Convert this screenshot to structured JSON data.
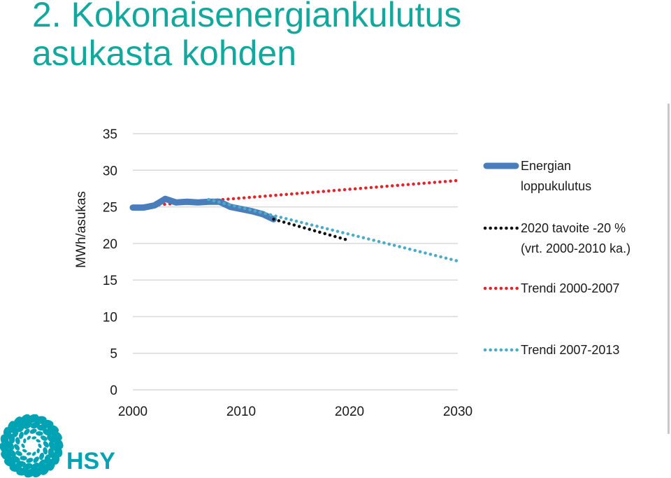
{
  "title": {
    "line1": "2. Kokonaisenergiankulutus",
    "line2": "asukasta kohden",
    "color": "#12a89d"
  },
  "logo": {
    "text": "HSY",
    "color": "#00a3b4",
    "icon": "hsy-rosette-logo-icon"
  },
  "chart_data": {
    "type": "line",
    "title": "",
    "xlabel": "",
    "ylabel": "MWh/asukas",
    "xlim": [
      2000,
      2030
    ],
    "ylim": [
      0,
      35
    ],
    "x_ticks": [
      2000,
      2010,
      2020,
      2030
    ],
    "y_ticks": [
      0,
      5,
      10,
      15,
      20,
      25,
      30,
      35
    ],
    "grid": "horizontal",
    "legend_position": "right",
    "series": [
      {
        "name": "Energian loppukulutus",
        "legend_lines": [
          "Energian",
          "loppukulutus"
        ],
        "style": "solid-thick",
        "color": "#4a7ebb",
        "points": [
          [
            2000,
            24.9
          ],
          [
            2001,
            24.9
          ],
          [
            2002,
            25.2
          ],
          [
            2003,
            26.1
          ],
          [
            2004,
            25.6
          ],
          [
            2005,
            25.7
          ],
          [
            2006,
            25.6
          ],
          [
            2007,
            25.7
          ],
          [
            2008,
            25.7
          ],
          [
            2009,
            25.0
          ],
          [
            2010,
            24.7
          ],
          [
            2011,
            24.4
          ],
          [
            2012,
            24.0
          ],
          [
            2013,
            23.3
          ]
        ]
      },
      {
        "name": "2020 tavoite -20 % (vrt. 2000-2010 ka.)",
        "legend_lines": [
          "2020 tavoite -20 %",
          "(vrt. 2000-2010 ka.)"
        ],
        "style": "dotted",
        "color": "#111111",
        "points": [
          [
            2013,
            23.3
          ],
          [
            2020,
            20.4
          ]
        ]
      },
      {
        "name": "Trendi 2000-2007",
        "legend_lines": [
          "Trendi 2000-2007"
        ],
        "style": "dotted",
        "color": "#e0262b",
        "points": [
          [
            2000,
            25.0
          ],
          [
            2030,
            28.6
          ]
        ]
      },
      {
        "name": "Trendi 2007-2013",
        "legend_lines": [
          "Trendi 2007-2013"
        ],
        "style": "dotted",
        "color": "#4bacc6",
        "points": [
          [
            2007,
            26.0
          ],
          [
            2030,
            17.6
          ]
        ]
      }
    ]
  }
}
